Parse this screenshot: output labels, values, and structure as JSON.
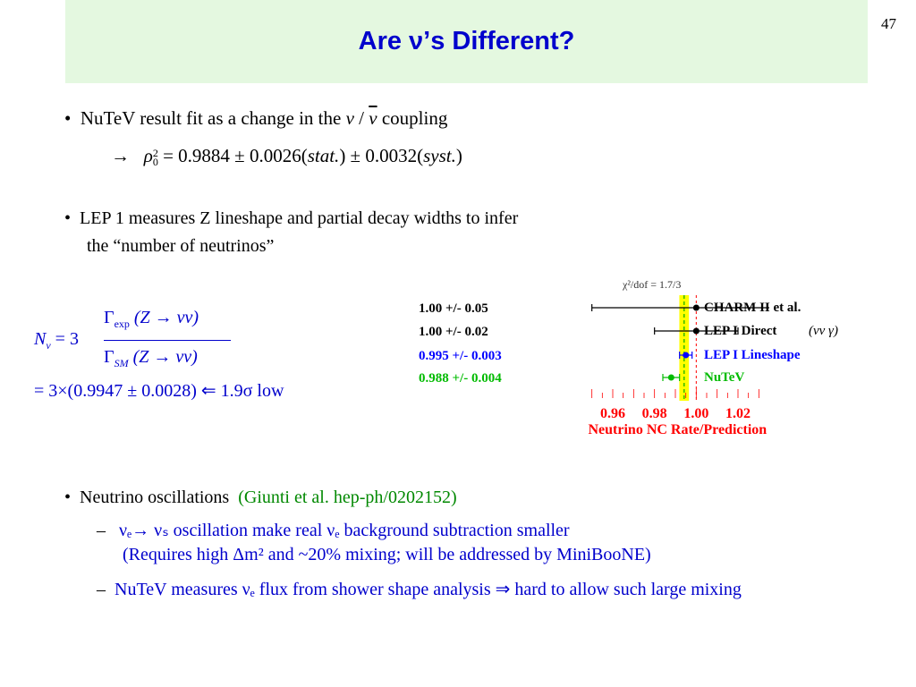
{
  "page_number": "47",
  "title": "Are ν’s Different?",
  "bullet_nutev": {
    "bullet": "•",
    "text_a": "NuTeV  result  fit as a change in the",
    "nu": "ν",
    "slash": "/",
    "nubar": "ν",
    "text_b": "coupling",
    "arrow": "→",
    "rho": "ρ",
    "rho_sup": "2",
    "rho_sub": "0",
    "value": "= 0.9884 ± 0.0026(",
    "stat": "stat.",
    "mid": ") ± 0.0032(",
    "syst": "syst.",
    "end": ")"
  },
  "bullet_lep": {
    "bullet": "•",
    "line1": "LEP 1 measures Z lineshape and partial decay widths to infer",
    "line2": "the “number of neutrinos”"
  },
  "formula": {
    "lhs": "N",
    "lhs_sub": "ν",
    "eq": "= 3",
    "gamma": "Γ",
    "num_sub": "exp",
    "num_body": "(Z → νν)",
    "den_sub": "SM",
    "den_body": "(Z → νν)",
    "result": "= 3×(0.9947 ± 0.0028) ⇐ 1.9σ  low"
  },
  "chart_data": {
    "type": "scatter",
    "annotation": "χ²/dof = 1.7/3",
    "xlabel": "Neutrino NC Rate/Prediction",
    "xlim": [
      0.945,
      1.035
    ],
    "xticks": [
      "0.96",
      "0.98",
      "1.00",
      "1.02"
    ],
    "band": {
      "low": 0.9919,
      "high": 0.9965,
      "center": 0.9942,
      "color": "#ffff00"
    },
    "sm_line": 1.0,
    "rows": [
      {
        "label": "1.00 +/- 0.05",
        "name": "CHARM II et al.",
        "value": 1.0,
        "err": 0.05,
        "color": "#000000"
      },
      {
        "label": "1.00 +/- 0.02",
        "name": "LEP I Direct",
        "value": 1.0,
        "err": 0.02,
        "color": "#000000",
        "name_suffix": "(νν γ)"
      },
      {
        "label": "0.995 +/- 0.003",
        "name": "LEP I Lineshape",
        "value": 0.995,
        "err": 0.003,
        "color": "#0000ff"
      },
      {
        "label": "0.988 +/- 0.004",
        "name": "NuTeV",
        "value": 0.988,
        "err": 0.004,
        "color": "#00bb00"
      }
    ],
    "tick_color": "#ff0000"
  },
  "bullet_osc": {
    "bullet": "•",
    "text": "Neutrino oscillations",
    "ref": "(Giunti et al.  hep-ph/0202152)",
    "dash": "–",
    "sub1_line1": "νₑ→ νₛ oscillation make real νₑ background subtraction smaller",
    "sub1_line2": "(Requires high Δm² and ~20% mixing; will be addressed by MiniBooNE)",
    "sub2": "NuTeV measures νₑ flux from shower shape analysis ⇒  hard to allow such large mixing"
  }
}
